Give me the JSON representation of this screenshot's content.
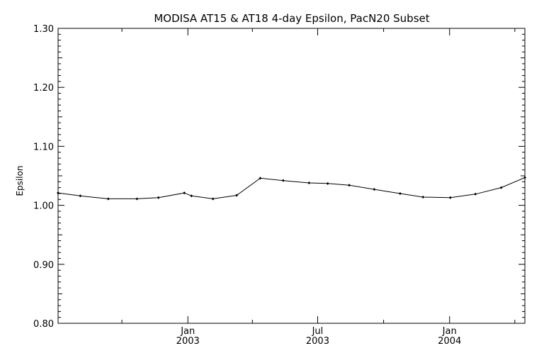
{
  "chart_data": {
    "type": "line",
    "title": "MODISA AT15 & AT18 4-day Epsilon, PacN20 Subset",
    "xlabel": "",
    "ylabel": "Epsilon",
    "x_start": "2002-07-04",
    "x_end": "2004-04-15",
    "ylim": [
      0.8,
      1.3
    ],
    "y_ticks": [
      "0.80",
      "0.90",
      "1.00",
      "1.10",
      "1.20",
      "1.30"
    ],
    "x_ticks": [
      {
        "month": "Jan",
        "year": "2003",
        "date": "2003-01-01"
      },
      {
        "month": "Jul",
        "year": "2003",
        "date": "2003-07-01"
      },
      {
        "month": "Jan",
        "year": "2004",
        "date": "2004-01-01"
      }
    ],
    "grid": false,
    "series": [
      {
        "points": [
          {
            "x": "2002-07-04",
            "y": 1.021
          },
          {
            "x": "2002-08-04",
            "y": 1.016
          },
          {
            "x": "2002-09-12",
            "y": 1.011
          },
          {
            "x": "2002-10-22",
            "y": 1.011
          },
          {
            "x": "2002-11-21",
            "y": 1.013
          },
          {
            "x": "2002-12-27",
            "y": 1.021
          },
          {
            "x": "2003-01-06",
            "y": 1.016
          },
          {
            "x": "2003-02-05",
            "y": 1.011
          },
          {
            "x": "2003-03-10",
            "y": 1.017
          },
          {
            "x": "2003-04-12",
            "y": 1.046
          },
          {
            "x": "2003-05-14",
            "y": 1.042
          },
          {
            "x": "2003-06-19",
            "y": 1.038
          },
          {
            "x": "2003-07-15",
            "y": 1.037
          },
          {
            "x": "2003-08-14",
            "y": 1.034
          },
          {
            "x": "2003-09-18",
            "y": 1.027
          },
          {
            "x": "2003-10-24",
            "y": 1.02
          },
          {
            "x": "2003-11-25",
            "y": 1.014
          },
          {
            "x": "2004-01-02",
            "y": 1.013
          },
          {
            "x": "2004-02-06",
            "y": 1.019
          },
          {
            "x": "2004-03-13",
            "y": 1.03
          },
          {
            "x": "2004-04-15",
            "y": 1.047
          }
        ]
      }
    ]
  }
}
